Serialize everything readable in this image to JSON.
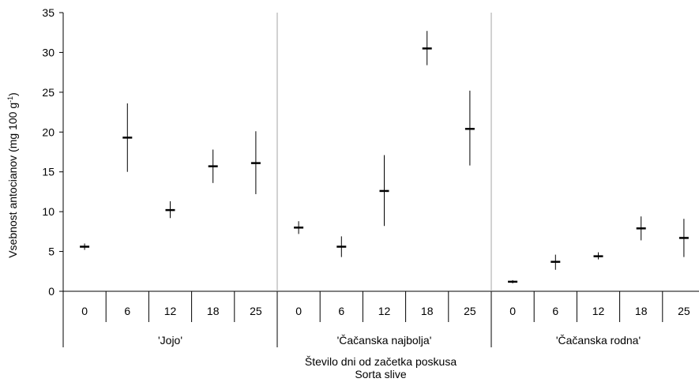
{
  "chart_data": {
    "type": "scatter",
    "ylabel_main": "Vsebnost antocianov (mg 100 g",
    "ylabel_sup": "-1",
    "ylabel_close": ")",
    "xlabel_line1": "Število dni od začetka poskusa",
    "xlabel_line2": "Sorta slive",
    "ylim": [
      0,
      35
    ],
    "yticks": [
      "0",
      "5",
      "10",
      "15",
      "20",
      "25",
      "30",
      "35"
    ],
    "grid": false,
    "groups": [
      {
        "label": "'Jojo'",
        "points": [
          {
            "day": "0",
            "mean": 5.6,
            "low": 5.2,
            "high": 6.0
          },
          {
            "day": "6",
            "mean": 19.3,
            "low": 15.0,
            "high": 23.6
          },
          {
            "day": "12",
            "mean": 10.2,
            "low": 9.2,
            "high": 11.3
          },
          {
            "day": "18",
            "mean": 15.7,
            "low": 13.6,
            "high": 17.8
          },
          {
            "day": "25",
            "mean": 16.1,
            "low": 12.2,
            "high": 20.1
          }
        ]
      },
      {
        "label": "'Čačanska najbolja'",
        "points": [
          {
            "day": "0",
            "mean": 8.0,
            "low": 7.2,
            "high": 8.8
          },
          {
            "day": "6",
            "mean": 5.6,
            "low": 4.3,
            "high": 6.9
          },
          {
            "day": "12",
            "mean": 12.6,
            "low": 8.2,
            "high": 17.1
          },
          {
            "day": "18",
            "mean": 30.5,
            "low": 28.4,
            "high": 32.7
          },
          {
            "day": "25",
            "mean": 20.4,
            "low": 15.8,
            "high": 25.2
          }
        ]
      },
      {
        "label": "'Čačanska rodna'",
        "points": [
          {
            "day": "0",
            "mean": 1.2,
            "low": 1.0,
            "high": 1.4
          },
          {
            "day": "6",
            "mean": 3.7,
            "low": 2.7,
            "high": 4.6
          },
          {
            "day": "12",
            "mean": 4.4,
            "low": 4.0,
            "high": 4.9
          },
          {
            "day": "18",
            "mean": 7.9,
            "low": 6.4,
            "high": 9.4
          },
          {
            "day": "25",
            "mean": 6.7,
            "low": 4.3,
            "high": 9.1
          }
        ]
      }
    ]
  }
}
